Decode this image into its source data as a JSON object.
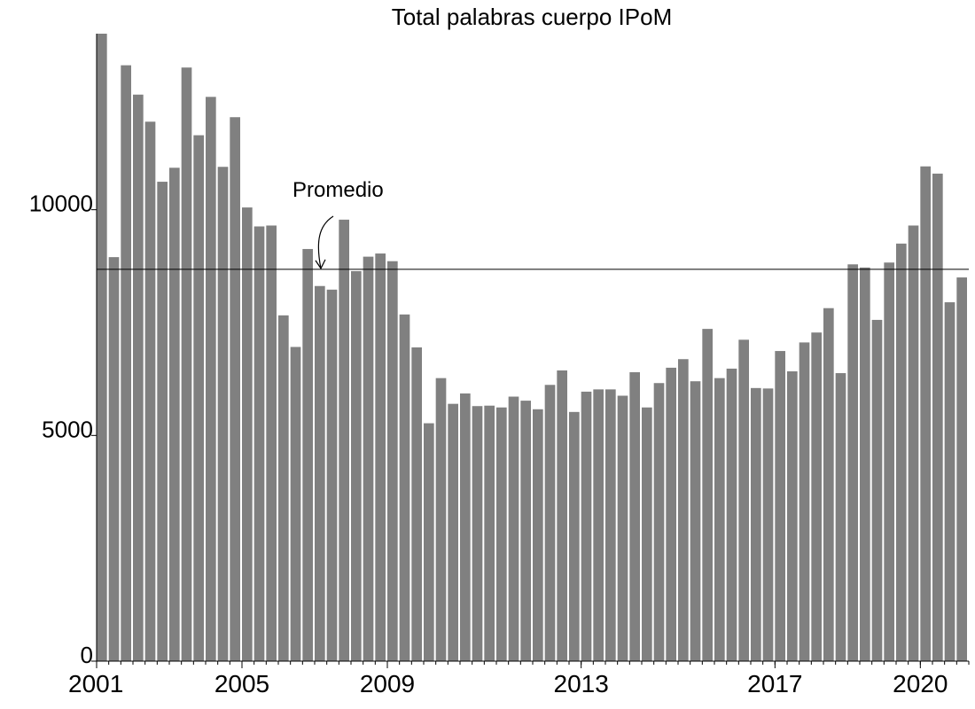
{
  "chart_data": {
    "type": "bar",
    "title": "Total palabras cuerpo IPoM",
    "xlabel": "",
    "ylabel": "",
    "ylim": [
      0,
      13900
    ],
    "y_ticks": [
      0,
      5000,
      10000
    ],
    "x_tick_labels": [
      {
        "label": "2001",
        "index": 0
      },
      {
        "label": "2005",
        "index": 12
      },
      {
        "label": "2009",
        "index": 24
      },
      {
        "label": "2013",
        "index": 40
      },
      {
        "label": "2017",
        "index": 56
      },
      {
        "label": "2020",
        "index": 68
      }
    ],
    "bar_color": "#808080",
    "values": [
      13900,
      8950,
      13200,
      12550,
      11950,
      10620,
      10930,
      13150,
      11650,
      12500,
      10950,
      12050,
      10050,
      9630,
      9650,
      7660,
      6960,
      9130,
      8310,
      8230,
      9780,
      8640,
      8960,
      9030,
      8860,
      7680,
      6950,
      5270,
      6270,
      5700,
      5930,
      5650,
      5660,
      5620,
      5860,
      5770,
      5580,
      6120,
      6440,
      5520,
      5970,
      6020,
      6020,
      5880,
      6400,
      5620,
      6160,
      6500,
      6690,
      6200,
      7360,
      6270,
      6480,
      7120,
      6050,
      6040,
      6870,
      6420,
      7060,
      7280,
      7820,
      6380,
      8790,
      8720,
      7560,
      8830,
      9250,
      9650,
      10960,
      10800,
      7950,
      8500
    ],
    "reference_line": {
      "value": 8680,
      "label": "Promedio"
    },
    "grid": false,
    "legend": "none"
  }
}
